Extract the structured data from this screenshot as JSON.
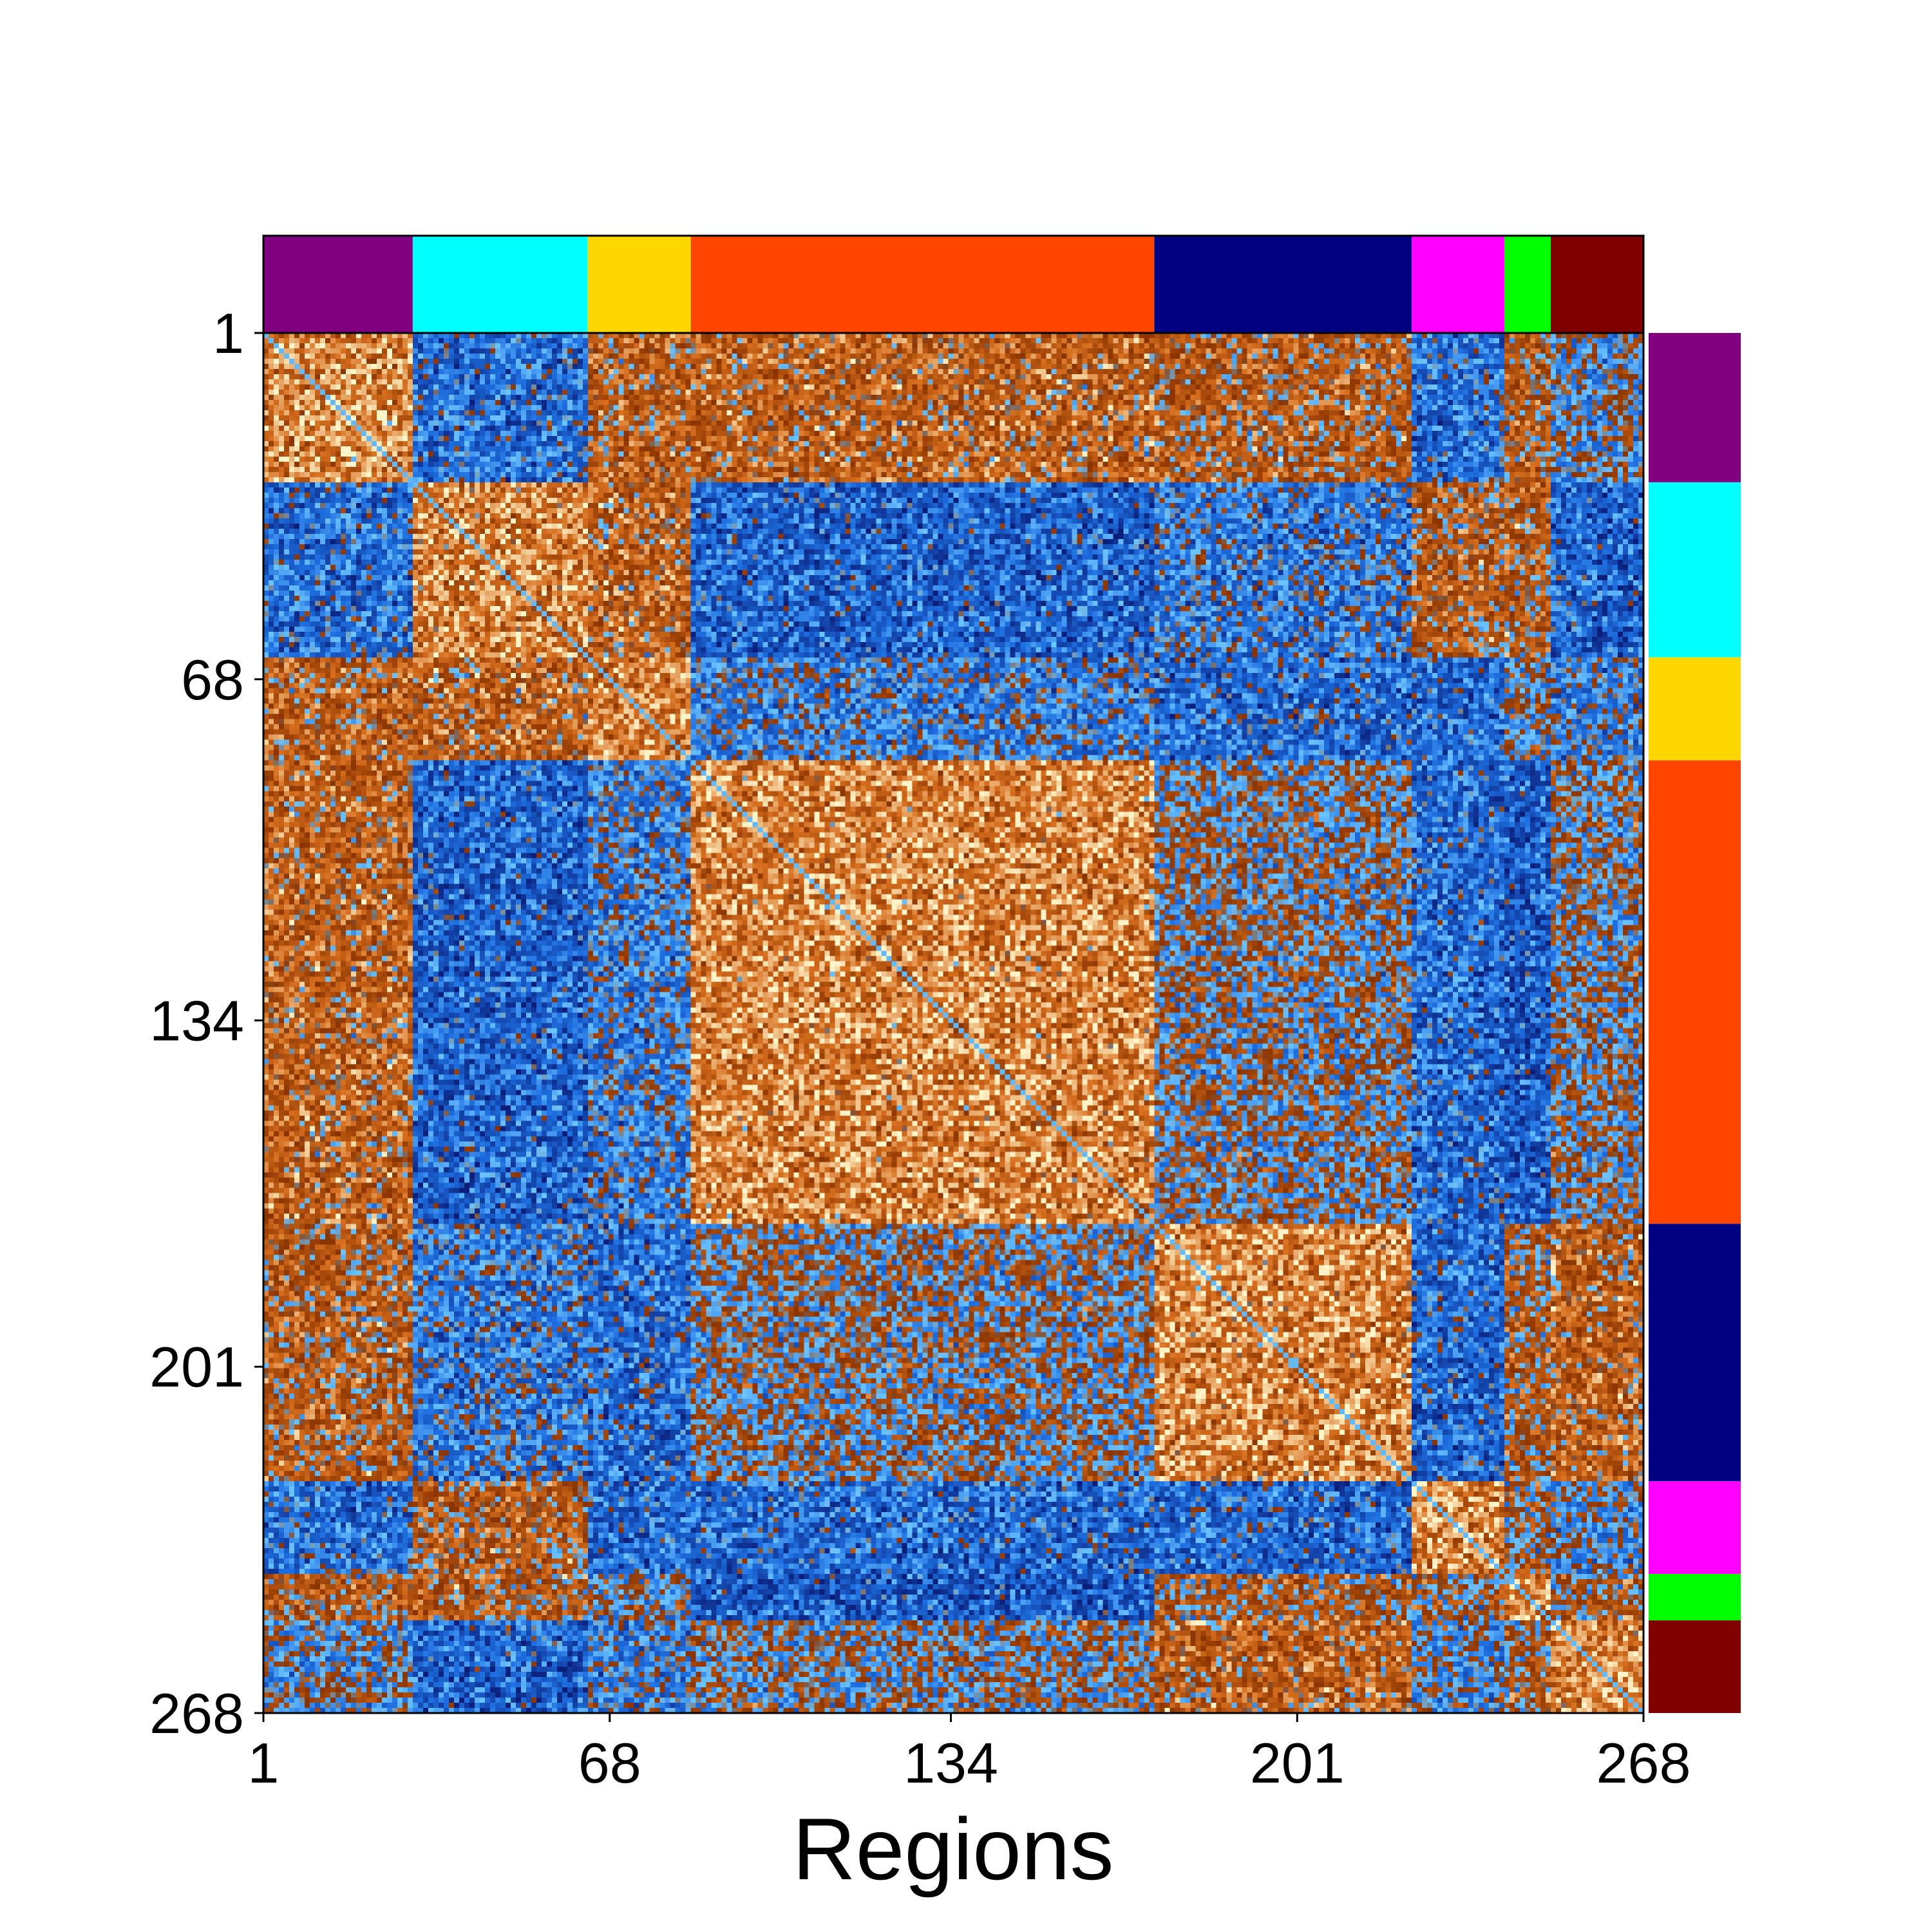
{
  "chart_data": {
    "type": "heatmap",
    "title": "",
    "xlabel": "Regions",
    "ylabel": "",
    "n_regions": 268,
    "x_ticks": [
      1,
      68,
      134,
      201,
      268
    ],
    "y_ticks": [
      1,
      68,
      134,
      201,
      268
    ],
    "x_tick_labels": [
      "1",
      "68",
      "134",
      "201",
      "268"
    ],
    "y_tick_labels": [
      "1",
      "68",
      "134",
      "201",
      "268"
    ],
    "colormap": {
      "low": "#0a1e7a",
      "mid_low": "#1e6fe0",
      "mid": "#6cc4ff",
      "mid_high": "#8a3300",
      "high": "#fff3c8"
    },
    "networks": [
      {
        "start": 1,
        "end": 29,
        "color": "#800080"
      },
      {
        "start": 30,
        "end": 63,
        "color": "#00ffff"
      },
      {
        "start": 64,
        "end": 83,
        "color": "#ffd700"
      },
      {
        "start": 84,
        "end": 173,
        "color": "#ff4500"
      },
      {
        "start": 174,
        "end": 223,
        "color": "#000080"
      },
      {
        "start": 224,
        "end": 241,
        "color": "#ff00ff"
      },
      {
        "start": 242,
        "end": 250,
        "color": "#00ff00"
      },
      {
        "start": 251,
        "end": 268,
        "color": "#800000"
      }
    ],
    "grid": false,
    "legend": "none"
  }
}
